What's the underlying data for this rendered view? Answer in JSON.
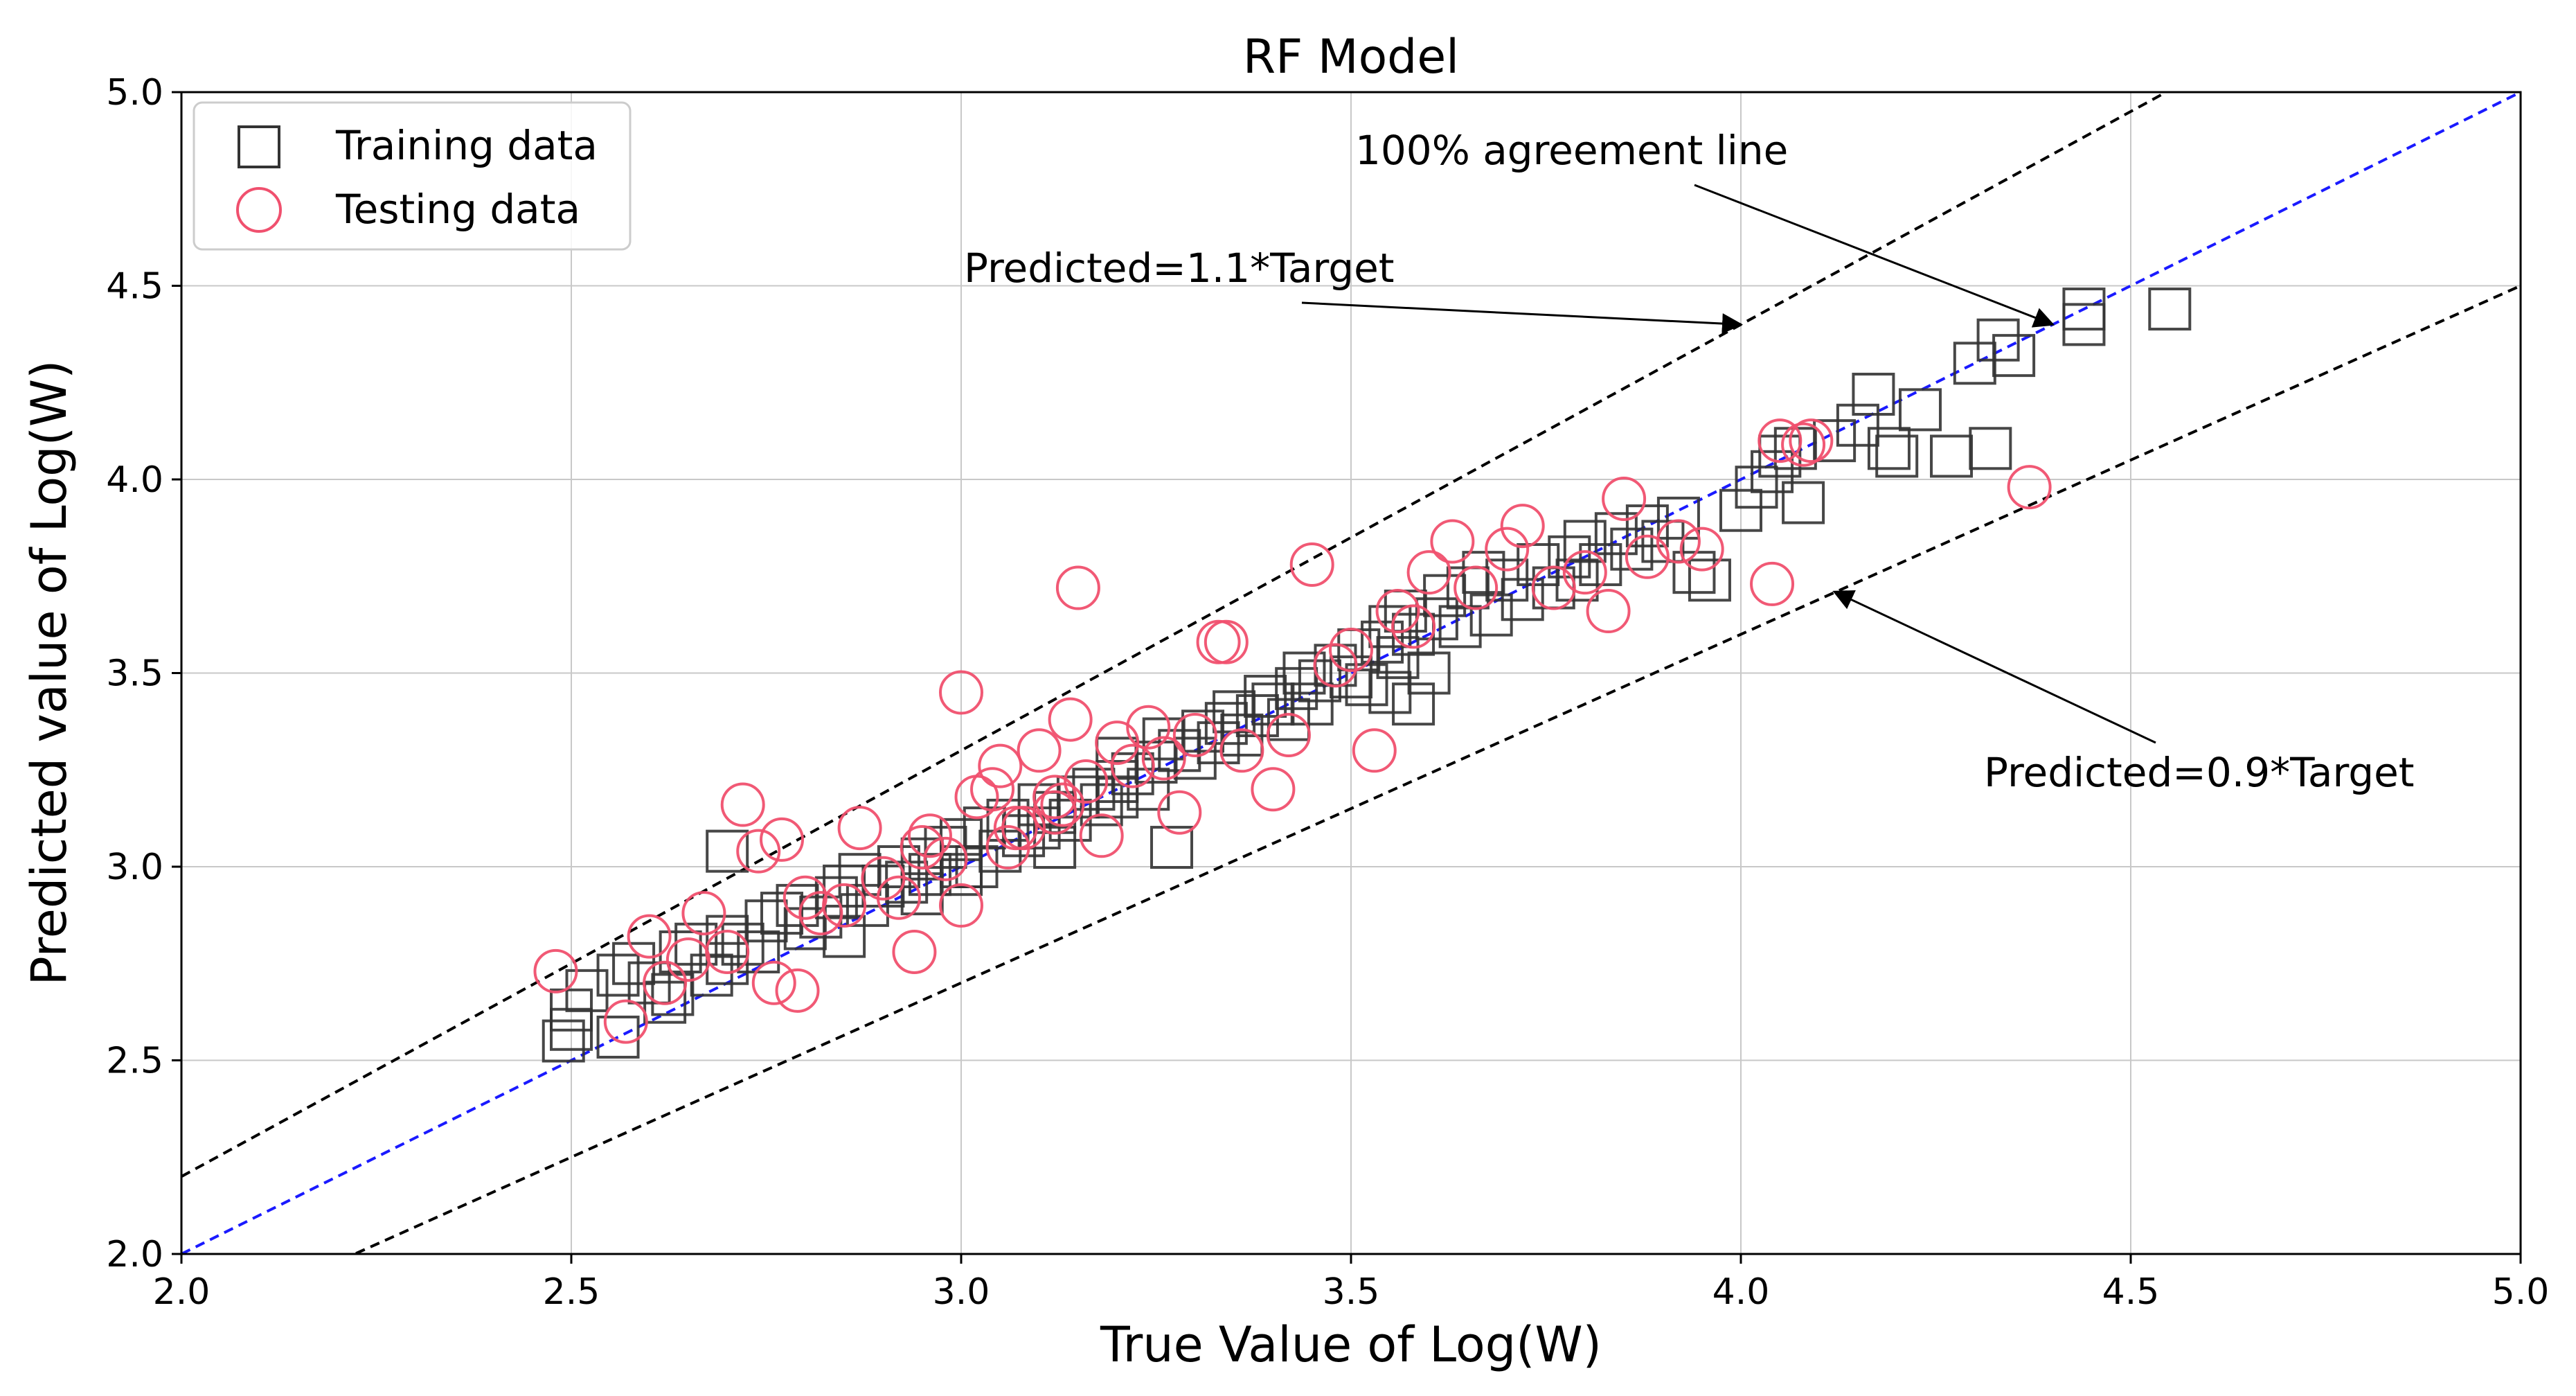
{
  "chart_data": {
    "type": "scatter",
    "title": "RF Model",
    "xlabel": "True Value of Log(W)",
    "ylabel": "Predicted value of Log(W)",
    "xlim": [
      2.0,
      5.0
    ],
    "ylim": [
      2.0,
      5.0
    ],
    "xticks": [
      "2.0",
      "2.5",
      "3.0",
      "3.5",
      "4.0",
      "4.5",
      "5.0"
    ],
    "yticks": [
      "2.0",
      "2.5",
      "3.0",
      "3.5",
      "4.0",
      "4.5",
      "5.0"
    ],
    "grid": true,
    "legend_position": "top-left",
    "series": [
      {
        "name": "Training data",
        "marker": "square",
        "color": "#333333",
        "points": [
          [
            2.49,
            2.55
          ],
          [
            2.5,
            2.58
          ],
          [
            2.5,
            2.63
          ],
          [
            2.52,
            2.68
          ],
          [
            2.56,
            2.56
          ],
          [
            2.56,
            2.72
          ],
          [
            2.58,
            2.75
          ],
          [
            2.6,
            2.7
          ],
          [
            2.62,
            2.65
          ],
          [
            2.63,
            2.67
          ],
          [
            2.64,
            2.78
          ],
          [
            2.66,
            2.8
          ],
          [
            2.68,
            2.72
          ],
          [
            2.7,
            2.75
          ],
          [
            2.7,
            3.04
          ],
          [
            2.72,
            2.8
          ],
          [
            2.74,
            2.78
          ],
          [
            2.75,
            2.86
          ],
          [
            2.77,
            2.88
          ],
          [
            2.79,
            2.9
          ],
          [
            2.8,
            2.84
          ],
          [
            2.82,
            2.87
          ],
          [
            2.84,
            2.92
          ],
          [
            2.85,
            2.95
          ],
          [
            2.87,
            2.98
          ],
          [
            2.88,
            2.9
          ],
          [
            2.9,
            2.95
          ],
          [
            2.92,
            3.0
          ],
          [
            2.93,
            2.96
          ],
          [
            2.95,
            3.02
          ],
          [
            2.96,
            2.98
          ],
          [
            2.98,
            3.05
          ],
          [
            3.0,
            2.98
          ],
          [
            3.0,
            3.07
          ],
          [
            3.02,
            3.0
          ],
          [
            3.03,
            3.1
          ],
          [
            3.05,
            3.04
          ],
          [
            3.06,
            3.12
          ],
          [
            3.08,
            3.08
          ],
          [
            3.1,
            3.1
          ],
          [
            3.1,
            3.16
          ],
          [
            3.12,
            3.14
          ],
          [
            3.14,
            3.12
          ],
          [
            3.15,
            3.18
          ],
          [
            3.17,
            3.2
          ],
          [
            3.18,
            3.16
          ],
          [
            3.2,
            3.22
          ],
          [
            3.2,
            3.28
          ],
          [
            3.22,
            3.24
          ],
          [
            3.24,
            3.2
          ],
          [
            3.25,
            3.27
          ],
          [
            3.26,
            3.33
          ],
          [
            3.27,
            3.05
          ],
          [
            3.28,
            3.3
          ],
          [
            3.3,
            3.28
          ],
          [
            3.31,
            3.35
          ],
          [
            3.33,
            3.32
          ],
          [
            3.34,
            3.37
          ],
          [
            3.35,
            3.4
          ],
          [
            3.36,
            3.34
          ],
          [
            3.38,
            3.39
          ],
          [
            3.39,
            3.44
          ],
          [
            3.4,
            3.42
          ],
          [
            3.42,
            3.38
          ],
          [
            3.43,
            3.46
          ],
          [
            3.44,
            3.5
          ],
          [
            3.45,
            3.42
          ],
          [
            3.46,
            3.48
          ],
          [
            3.48,
            3.52
          ],
          [
            3.5,
            3.49
          ],
          [
            3.51,
            3.56
          ],
          [
            3.52,
            3.47
          ],
          [
            3.54,
            3.58
          ],
          [
            3.55,
            3.62
          ],
          [
            3.56,
            3.54
          ],
          [
            3.57,
            3.66
          ],
          [
            3.58,
            3.6
          ],
          [
            3.6,
            3.5
          ],
          [
            3.61,
            3.64
          ],
          [
            3.62,
            3.7
          ],
          [
            3.64,
            3.62
          ],
          [
            3.65,
            3.72
          ],
          [
            3.67,
            3.76
          ],
          [
            3.68,
            3.65
          ],
          [
            3.7,
            3.74
          ],
          [
            3.72,
            3.69
          ],
          [
            3.74,
            3.78
          ],
          [
            3.76,
            3.72
          ],
          [
            3.78,
            3.8
          ],
          [
            3.79,
            3.74
          ],
          [
            3.8,
            3.84
          ],
          [
            3.82,
            3.78
          ],
          [
            3.84,
            3.86
          ],
          [
            3.86,
            3.82
          ],
          [
            3.88,
            3.88
          ],
          [
            3.9,
            3.84
          ],
          [
            3.92,
            3.9
          ],
          [
            3.94,
            3.76
          ],
          [
            3.96,
            3.74
          ],
          [
            4.0,
            3.92
          ],
          [
            4.02,
            3.98
          ],
          [
            4.04,
            4.02
          ],
          [
            4.05,
            4.06
          ],
          [
            4.07,
            4.08
          ],
          [
            4.08,
            3.94
          ],
          [
            4.12,
            4.1
          ],
          [
            4.15,
            4.14
          ],
          [
            4.17,
            4.22
          ],
          [
            4.19,
            4.08
          ],
          [
            4.2,
            4.06
          ],
          [
            4.23,
            4.18
          ],
          [
            4.27,
            4.06
          ],
          [
            4.3,
            4.3
          ],
          [
            4.32,
            4.08
          ],
          [
            4.33,
            4.36
          ],
          [
            4.35,
            4.32
          ],
          [
            4.44,
            4.4
          ],
          [
            4.44,
            4.44
          ],
          [
            4.55,
            4.44
          ],
          [
            3.55,
            3.45
          ],
          [
            3.58,
            3.42
          ],
          [
            3.2,
            3.18
          ],
          [
            3.0,
            3.0
          ],
          [
            2.95,
            2.93
          ],
          [
            2.7,
            2.82
          ],
          [
            2.85,
            2.82
          ],
          [
            3.12,
            3.05
          ]
        ]
      },
      {
        "name": "Testing data",
        "marker": "circle",
        "color": "#f0506e",
        "points": [
          [
            2.48,
            2.73
          ],
          [
            2.57,
            2.6
          ],
          [
            2.6,
            2.82
          ],
          [
            2.62,
            2.7
          ],
          [
            2.65,
            2.76
          ],
          [
            2.67,
            2.88
          ],
          [
            2.7,
            2.78
          ],
          [
            2.72,
            3.16
          ],
          [
            2.74,
            3.04
          ],
          [
            2.76,
            2.7
          ],
          [
            2.77,
            3.07
          ],
          [
            2.79,
            2.68
          ],
          [
            2.8,
            2.92
          ],
          [
            2.82,
            2.88
          ],
          [
            2.85,
            2.9
          ],
          [
            2.87,
            3.1
          ],
          [
            2.9,
            2.97
          ],
          [
            2.92,
            2.92
          ],
          [
            2.94,
            2.78
          ],
          [
            2.96,
            3.08
          ],
          [
            2.98,
            3.02
          ],
          [
            3.0,
            2.9
          ],
          [
            3.0,
            3.45
          ],
          [
            3.02,
            3.18
          ],
          [
            3.04,
            3.2
          ],
          [
            3.05,
            3.26
          ],
          [
            3.06,
            3.05
          ],
          [
            3.08,
            3.1
          ],
          [
            3.1,
            3.3
          ],
          [
            3.12,
            3.14
          ],
          [
            3.13,
            3.16
          ],
          [
            3.14,
            3.38
          ],
          [
            3.15,
            3.72
          ],
          [
            3.16,
            3.22
          ],
          [
            3.18,
            3.08
          ],
          [
            3.2,
            3.32
          ],
          [
            3.22,
            3.26
          ],
          [
            3.24,
            3.36
          ],
          [
            3.26,
            3.28
          ],
          [
            3.28,
            3.14
          ],
          [
            3.3,
            3.34
          ],
          [
            3.33,
            3.58
          ],
          [
            3.34,
            3.58
          ],
          [
            3.36,
            3.3
          ],
          [
            3.4,
            3.2
          ],
          [
            3.42,
            3.34
          ],
          [
            3.45,
            3.78
          ],
          [
            3.48,
            3.52
          ],
          [
            3.5,
            3.56
          ],
          [
            3.53,
            3.3
          ],
          [
            3.56,
            3.66
          ],
          [
            3.58,
            3.62
          ],
          [
            3.6,
            3.76
          ],
          [
            3.63,
            3.84
          ],
          [
            3.66,
            3.72
          ],
          [
            3.7,
            3.82
          ],
          [
            3.72,
            3.88
          ],
          [
            3.76,
            3.72
          ],
          [
            3.8,
            3.76
          ],
          [
            3.83,
            3.66
          ],
          [
            3.85,
            3.95
          ],
          [
            3.88,
            3.8
          ],
          [
            3.92,
            3.84
          ],
          [
            3.95,
            3.82
          ],
          [
            4.04,
            3.73
          ],
          [
            4.05,
            4.1
          ],
          [
            4.08,
            4.09
          ],
          [
            4.09,
            4.1
          ],
          [
            4.37,
            3.98
          ],
          [
            3.12,
            3.18
          ],
          [
            3.07,
            3.1
          ],
          [
            2.95,
            3.05
          ]
        ]
      }
    ],
    "reference_lines": [
      {
        "name": "Predicted=1.1*Target",
        "slope": 1.1,
        "color": "#000000",
        "style": "dashed"
      },
      {
        "name": "100% agreement line",
        "slope": 1.0,
        "color": "#1a1aff",
        "style": "dashed"
      },
      {
        "name": "Predicted=0.9*Target",
        "slope": 0.9,
        "color": "#000000",
        "style": "dashed"
      }
    ],
    "annotations": [
      {
        "text": "100% agreement line",
        "target": [
          4.4,
          4.4
        ]
      },
      {
        "text": "Predicted=1.1*Target",
        "target": [
          4.0,
          4.4
        ]
      },
      {
        "text": "Predicted=0.9*Target",
        "target": [
          4.12,
          3.71
        ]
      }
    ]
  }
}
